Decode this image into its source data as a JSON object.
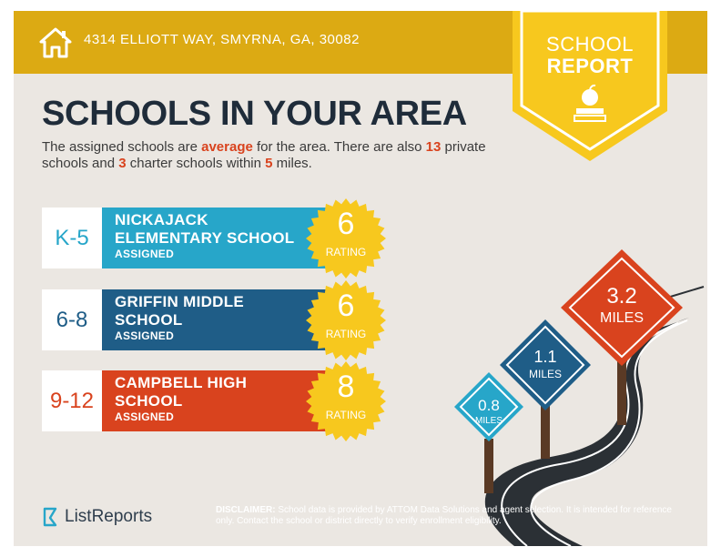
{
  "header": {
    "address": "4314 ELLIOTT WAY, SMYRNA, GA, 30082",
    "home_icon": "house-icon"
  },
  "badge": {
    "line1": "SCHOOL",
    "line2": "REPORT",
    "icon": "apple-on-book-icon"
  },
  "headline": "SCHOOLS IN YOUR AREA",
  "summary": {
    "p1": "The assigned schools are ",
    "quality": "average",
    "p2": " for the area. There are also ",
    "private_count": "13",
    "p3": " private schools and ",
    "charter_count": "3",
    "p4": " charter schools within ",
    "radius": "5",
    "p5": " miles."
  },
  "schools": [
    {
      "grades": "K-5",
      "name": "NICKAJACK ELEMENTARY SCHOOL",
      "status": "ASSIGNED",
      "rating": "6",
      "rating_label": "RATING",
      "color": "#27a6c9",
      "grade_color": "#27a6c9"
    },
    {
      "grades": "6-8",
      "name": "GRIFFIN MIDDLE SCHOOL",
      "status": "ASSIGNED",
      "rating": "6",
      "rating_label": "RATING",
      "color": "#1f5d87",
      "grade_color": "#1f5d87"
    },
    {
      "grades": "9-12",
      "name": "CAMPBELL HIGH SCHOOL",
      "status": "ASSIGNED",
      "rating": "8",
      "rating_label": "RATING",
      "color": "#d9431e",
      "grade_color": "#d9431e"
    }
  ],
  "distance_signs": [
    {
      "value": "0.8",
      "unit": "MILES",
      "color": "#27a6c9"
    },
    {
      "value": "1.1",
      "unit": "MILES",
      "color": "#1f5d87"
    },
    {
      "value": "3.2",
      "unit": "MILES",
      "color": "#d9431e"
    }
  ],
  "footer": {
    "logo_text": "ListReports",
    "disclaimer_label": "DISCLAIMER:",
    "disclaimer_text": " School data is provided by ATTOM Data Solutions and agent selection. It is intended for reference only. Contact the school or district directly to verify enrollment eligibility."
  },
  "colors": {
    "gold": "#dcaa13",
    "seal": "#f7c81e",
    "background": "#ebe7e2",
    "heading": "#1f2c3a",
    "accent": "#d9431e"
  }
}
